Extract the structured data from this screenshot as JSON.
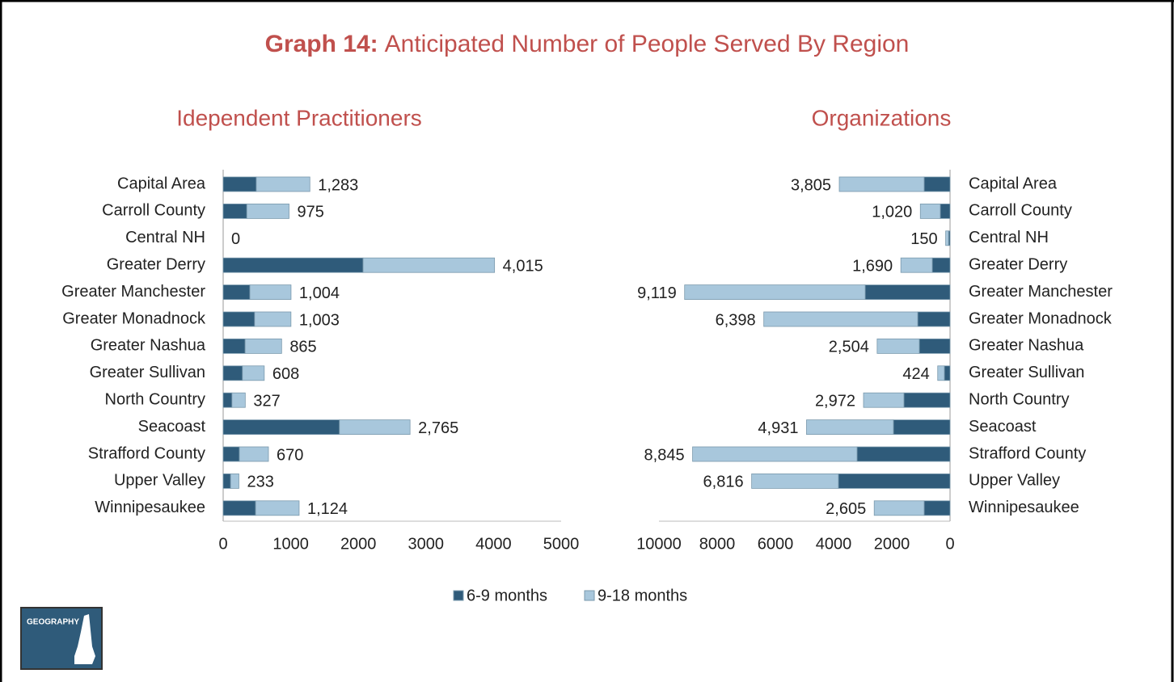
{
  "title_lead": "Graph 14:",
  "title": "Anticipated Number of People Served By Region",
  "badge": "GEOGRAPHY",
  "chart_data": [
    {
      "type": "stacked_bar_h",
      "title": "Idependent Practitioners",
      "categories": [
        "Capital Area",
        "Carroll County",
        "Central NH",
        "Greater Derry",
        "Greater Manchester",
        "Greater Monadnock",
        "Greater Nashua",
        "Greater Sullivan",
        "North Country",
        "Seacoast",
        "Strafford County",
        "Upper Valley",
        "Winnipesaukee"
      ],
      "series": [
        {
          "name": "6-9 months",
          "color": "#2f5b7a",
          "values": [
            490,
            350,
            0,
            2070,
            395,
            465,
            325,
            285,
            130,
            1720,
            240,
            110,
            480
          ]
        },
        {
          "name": "9-18 months",
          "color": "#a8c7dc",
          "values": [
            793,
            625,
            0,
            1945,
            609,
            538,
            540,
            323,
            197,
            1045,
            430,
            123,
            644
          ]
        }
      ],
      "total_labels": [
        "1,283",
        "975",
        "0",
        "4,015",
        "1,004",
        "1,003",
        "865",
        "608",
        "327",
        "2,765",
        "670",
        "233",
        "1,124"
      ],
      "xlim": [
        0,
        5000
      ],
      "xticks": [
        0,
        1000,
        2000,
        3000,
        4000,
        5000
      ],
      "reversed": false
    },
    {
      "type": "stacked_bar_h",
      "title": "Organizations",
      "categories": [
        "Capital Area",
        "Carroll County",
        "Central NH",
        "Greater Derry",
        "Greater Manchester",
        "Greater Monadnock",
        "Greater Nashua",
        "Greater Sullivan",
        "North Country",
        "Seacoast",
        "Strafford County",
        "Upper Valley",
        "Winnipesaukee"
      ],
      "series": [
        {
          "color": "#2f5b7a",
          "values": [
            890,
            335,
            50,
            610,
            2915,
            1110,
            1055,
            195,
            1585,
            1945,
            3195,
            3835,
            890
          ]
        },
        {
          "color": "#a8c7dc",
          "values": [
            2915,
            685,
            100,
            1080,
            6204,
            5288,
            1449,
            229,
            1387,
            2986,
            5650,
            2981,
            1715
          ]
        }
      ],
      "total_labels": [
        "3,805",
        "1,020",
        "150",
        "1,690",
        "9,119",
        "6,398",
        "2,504",
        "424",
        "2,972",
        "4,931",
        "8,845",
        "6,816",
        "2,605"
      ],
      "xlim": [
        0,
        10000
      ],
      "xticks": [
        0,
        2000,
        4000,
        6000,
        8000,
        10000
      ],
      "reversed": true
    }
  ]
}
